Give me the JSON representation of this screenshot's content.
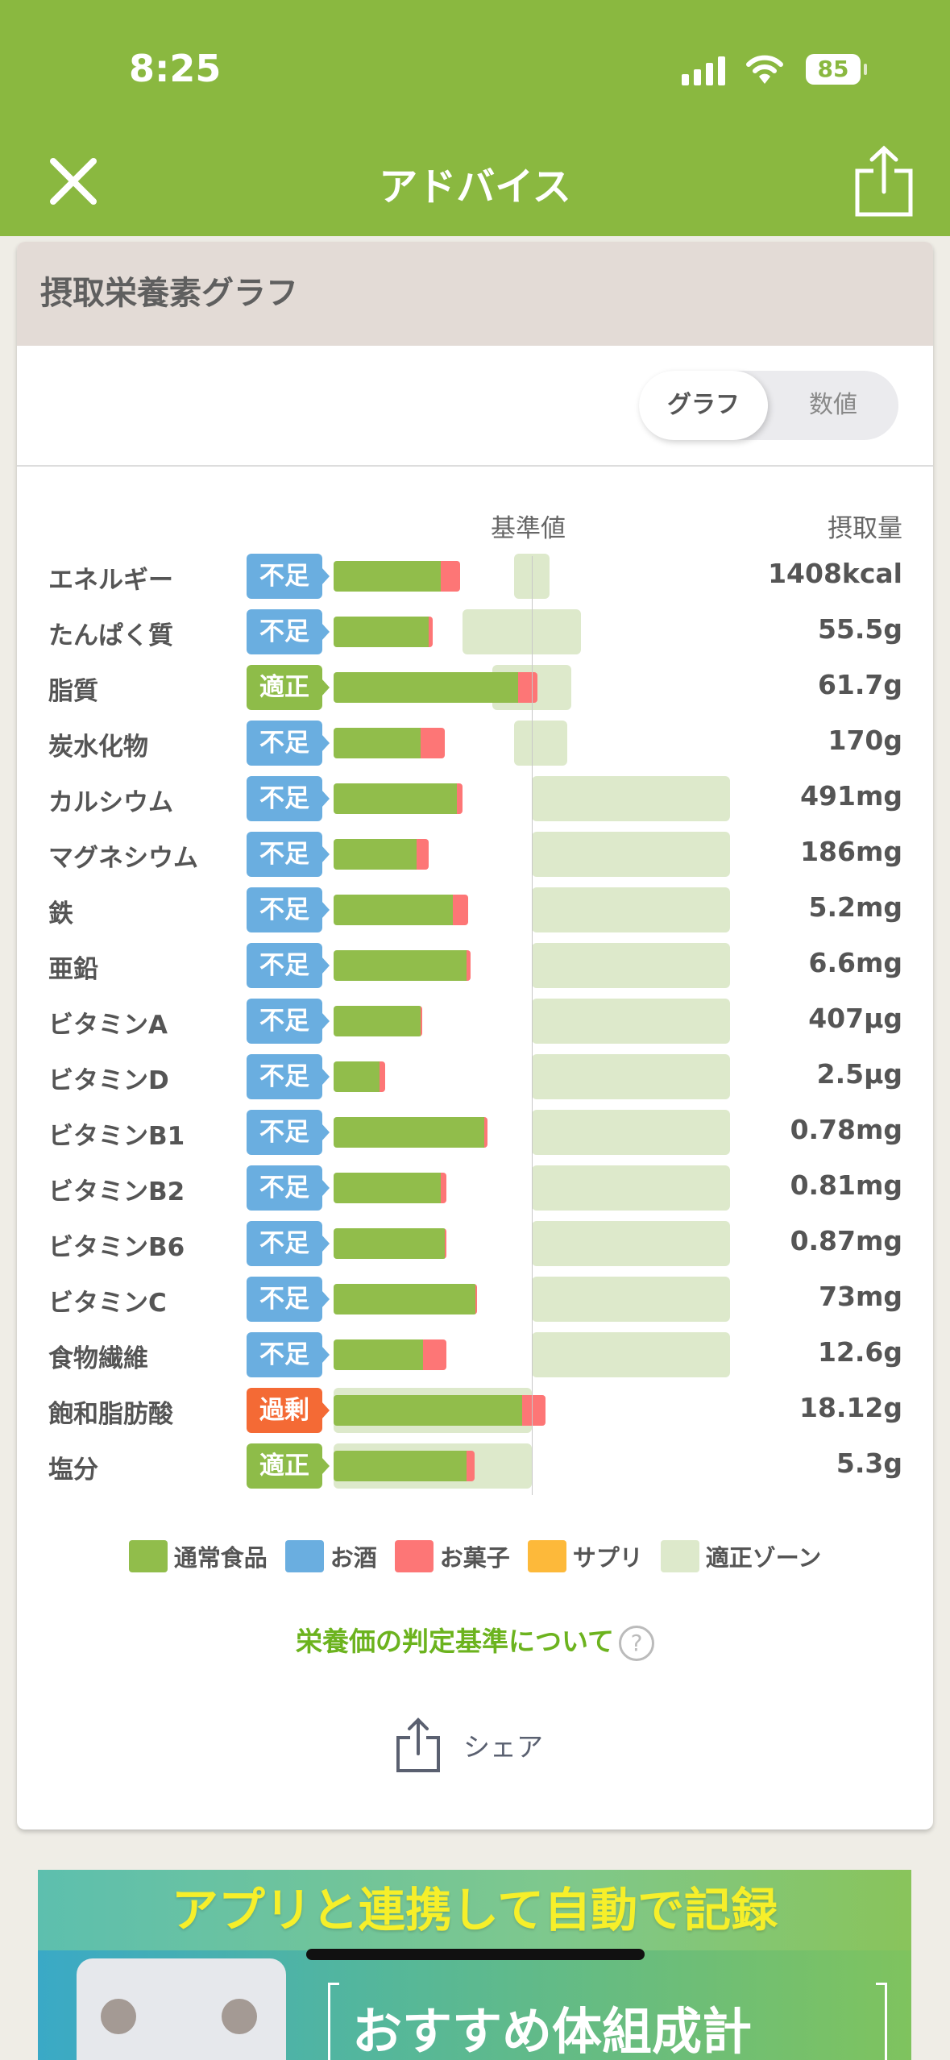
{
  "status_bar": {
    "time": "8:25",
    "battery": "85"
  },
  "nav": {
    "title": "アドバイス"
  },
  "card": {
    "title": "摂取栄養素グラフ",
    "toggle": {
      "active": "グラフ",
      "inactive": "数値"
    },
    "col_reference": "基準値",
    "col_intake": "摂取量",
    "rows": [
      {
        "name": "エネルギー",
        "status": "不足",
        "value": "1408kcal",
        "normal_pct": 54,
        "snack_pct": 10,
        "zone_pct": [
          91,
          109
        ]
      },
      {
        "name": "たんぱく質",
        "status": "不足",
        "value": "55.5g",
        "normal_pct": 48,
        "snack_pct": 2,
        "zone_pct": [
          65,
          125
        ]
      },
      {
        "name": "脂質",
        "status": "適正",
        "value": "61.7g",
        "normal_pct": 93,
        "snack_pct": 10,
        "zone_pct": [
          80,
          120
        ]
      },
      {
        "name": "炭水化物",
        "status": "不足",
        "value": "170g",
        "normal_pct": 44,
        "snack_pct": 12,
        "zone_pct": [
          91,
          118
        ]
      },
      {
        "name": "カルシウム",
        "status": "不足",
        "value": "491mg",
        "normal_pct": 62,
        "snack_pct": 3,
        "zone_pct": [
          100,
          200
        ]
      },
      {
        "name": "マグネシウム",
        "status": "不足",
        "value": "186mg",
        "normal_pct": 42,
        "snack_pct": 6,
        "zone_pct": [
          100,
          200
        ]
      },
      {
        "name": "鉄",
        "status": "不足",
        "value": "5.2mg",
        "normal_pct": 60,
        "snack_pct": 8,
        "zone_pct": [
          100,
          200
        ]
      },
      {
        "name": "亜鉛",
        "status": "不足",
        "value": "6.6mg",
        "normal_pct": 67,
        "snack_pct": 2,
        "zone_pct": [
          100,
          200
        ]
      },
      {
        "name": "ビタミンA",
        "status": "不足",
        "value": "407μg",
        "normal_pct": 44,
        "snack_pct": 0.7,
        "zone_pct": [
          100,
          200
        ]
      },
      {
        "name": "ビタミンD",
        "status": "不足",
        "value": "2.5μg",
        "normal_pct": 23,
        "snack_pct": 3,
        "zone_pct": [
          100,
          200
        ]
      },
      {
        "name": "ビタミンB1",
        "status": "不足",
        "value": "0.78mg",
        "normal_pct": 76,
        "snack_pct": 1.5,
        "zone_pct": [
          100,
          200
        ]
      },
      {
        "name": "ビタミンB2",
        "status": "不足",
        "value": "0.81mg",
        "normal_pct": 54,
        "snack_pct": 3,
        "zone_pct": [
          100,
          200
        ]
      },
      {
        "name": "ビタミンB6",
        "status": "不足",
        "value": "0.87mg",
        "normal_pct": 56,
        "snack_pct": 1,
        "zone_pct": [
          100,
          200
        ]
      },
      {
        "name": "ビタミンC",
        "status": "不足",
        "value": "73mg",
        "normal_pct": 71.5,
        "snack_pct": 0.7,
        "zone_pct": [
          100,
          200
        ]
      },
      {
        "name": "食物繊維",
        "status": "不足",
        "value": "12.6g",
        "normal_pct": 45,
        "snack_pct": 12,
        "zone_pct": [
          100,
          200
        ]
      },
      {
        "name": "飽和脂肪酸",
        "status": "過剰",
        "value": "18.12g",
        "normal_pct": 95,
        "snack_pct": 12,
        "zone_pct": [
          0,
          100
        ]
      },
      {
        "name": "塩分",
        "status": "適正",
        "value": "5.3g",
        "normal_pct": 67,
        "snack_pct": 4,
        "zone_pct": [
          0,
          100
        ]
      }
    ],
    "status_colors": {
      "不足": "#6aaee0",
      "適正": "#8ebc49",
      "過剰": "#f46a35"
    },
    "legend": [
      {
        "label": "通常食品",
        "color": "#91bd4b"
      },
      {
        "label": "お酒",
        "color": "#6aaee0"
      },
      {
        "label": "お菓子",
        "color": "#fd7676"
      },
      {
        "label": "サプリ",
        "color": "#fdb93a"
      },
      {
        "label": "適正ゾーン",
        "color": "#dde9cb"
      }
    ],
    "criteria_link": "栄養価の判定基準について",
    "help_icon": "?",
    "share_label": "シェア"
  },
  "banner": {
    "headline": "アプリと連携して自動で記録",
    "subhead": "おすすめ体組成計"
  }
}
